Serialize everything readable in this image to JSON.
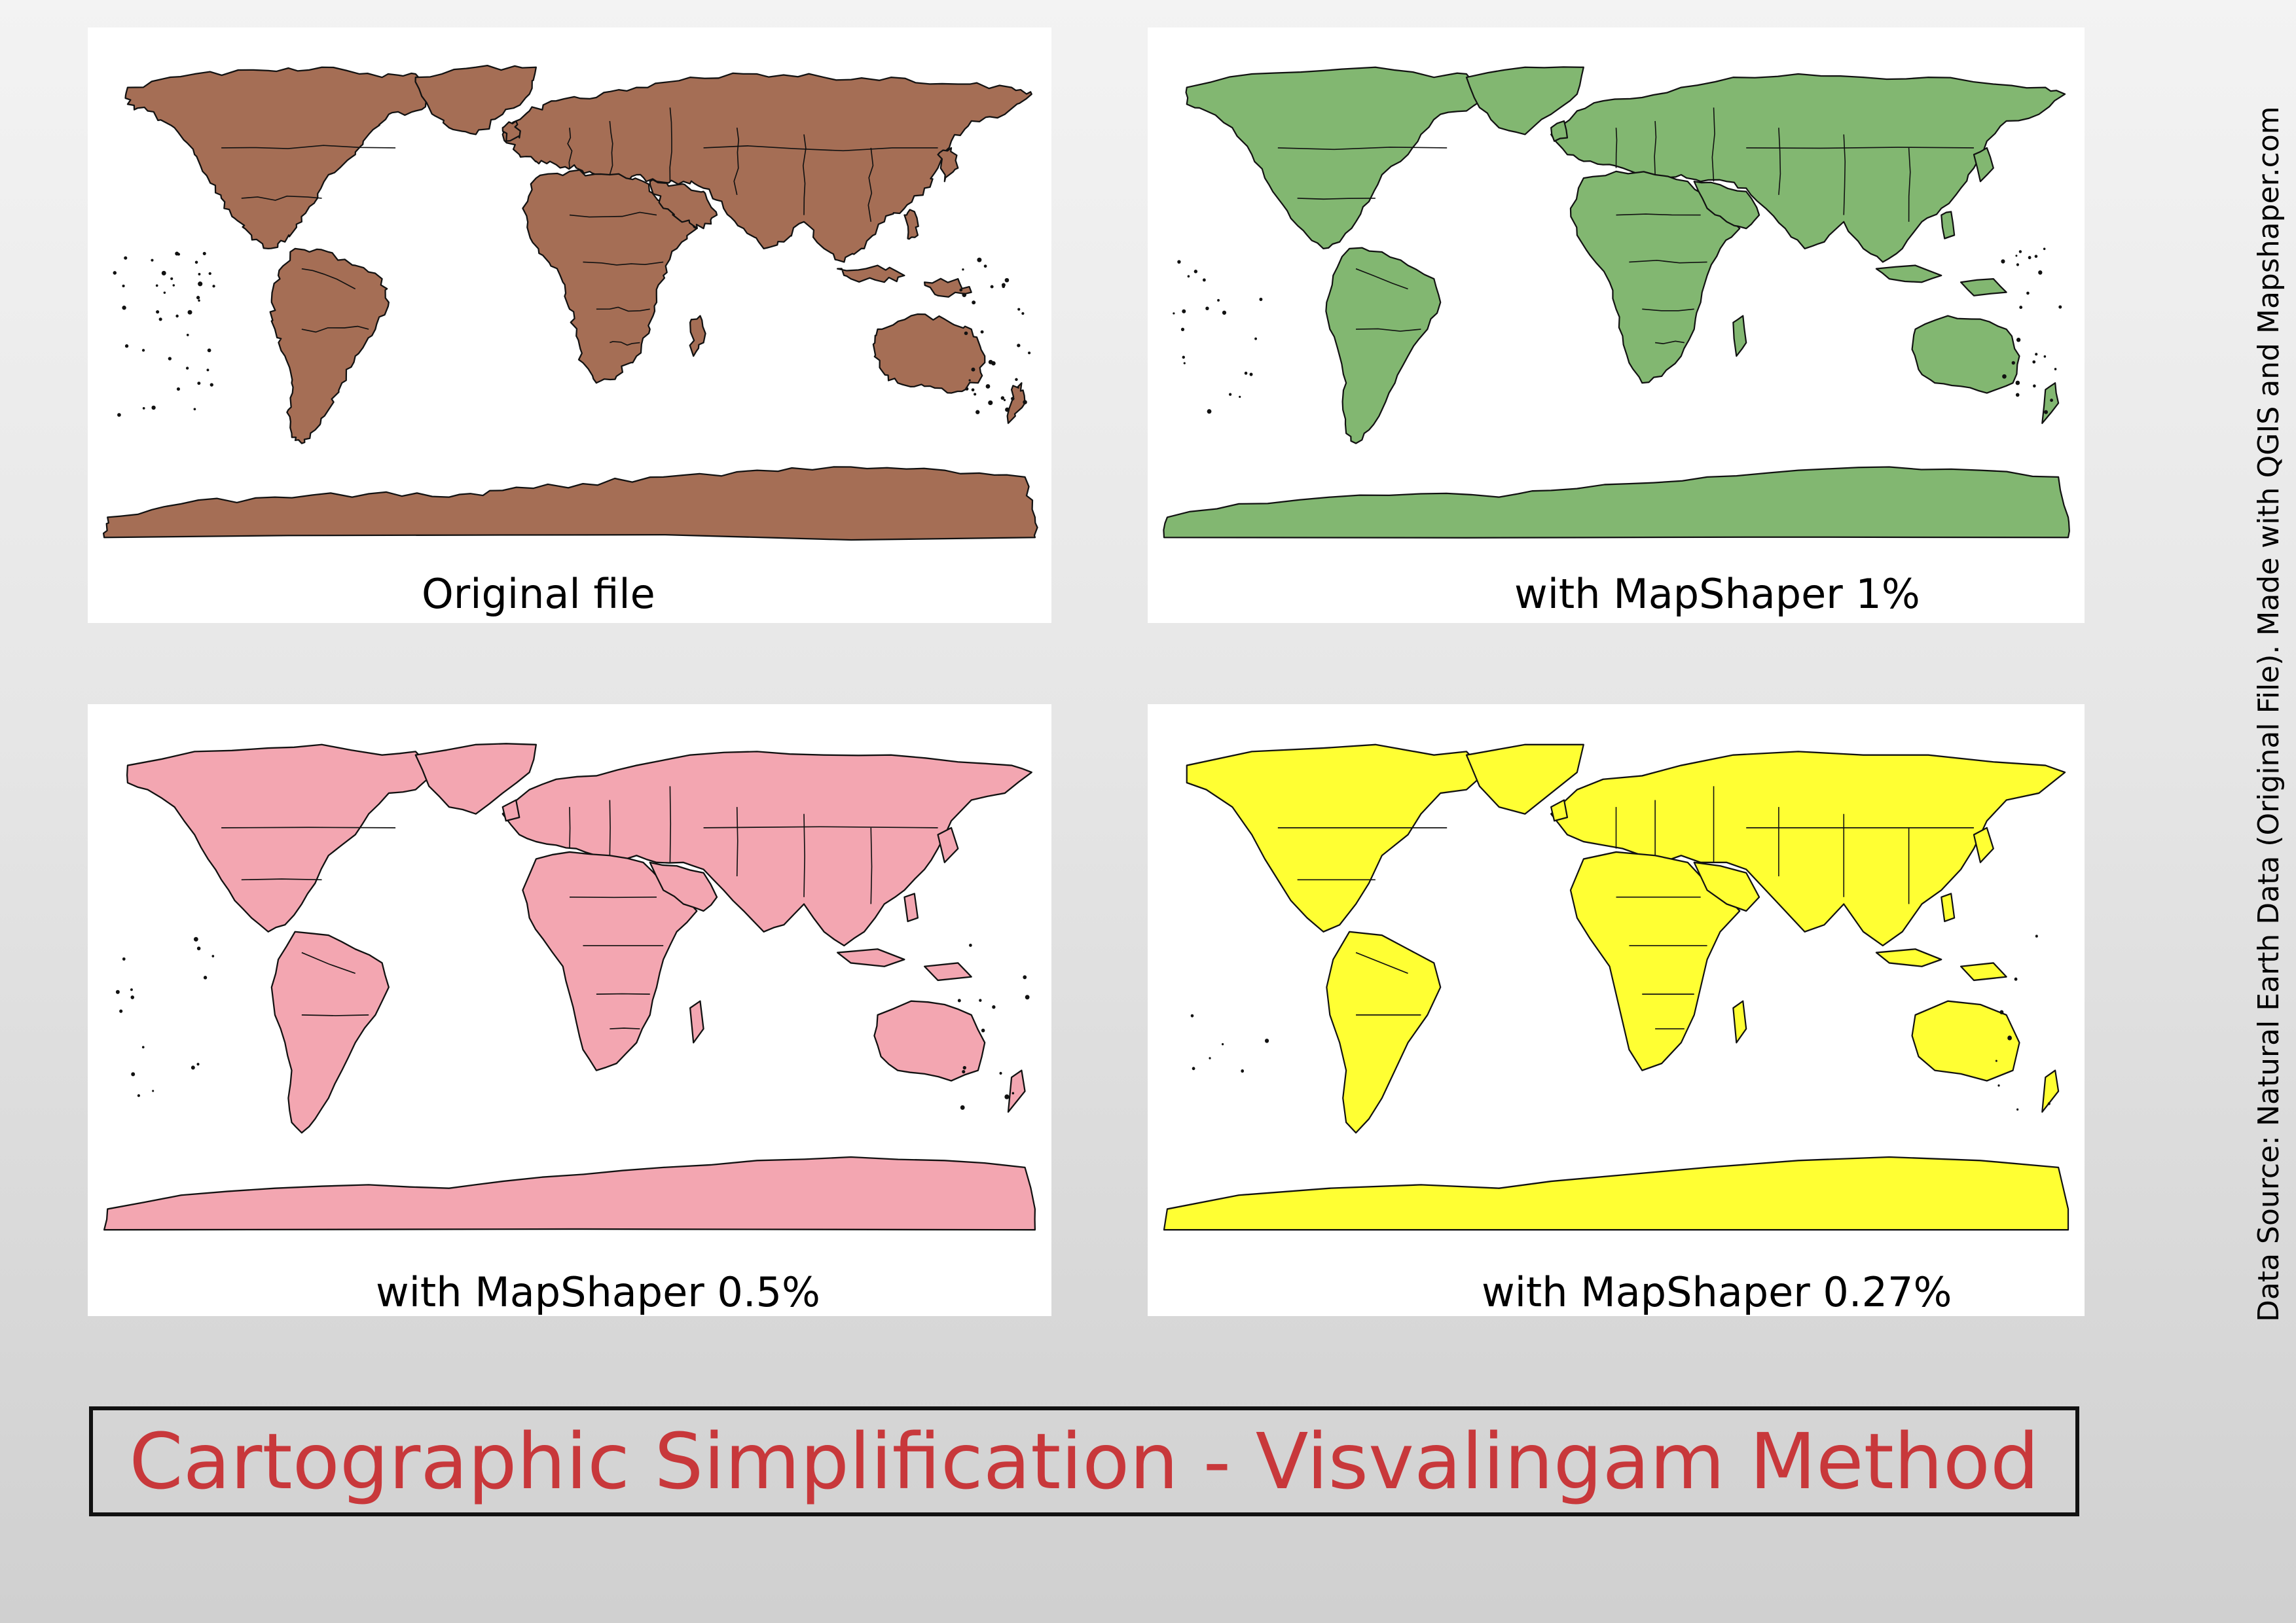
{
  "panels": [
    {
      "id": "original",
      "caption": "Original file",
      "fill": "#a56e55",
      "detail": "high"
    },
    {
      "id": "mapshaper-1",
      "caption": "with MapShaper 1%",
      "fill": "#82b771",
      "detail": "medium"
    },
    {
      "id": "mapshaper-0-5",
      "caption": "with MapShaper 0.5%",
      "fill": "#f3a6b1",
      "detail": "low"
    },
    {
      "id": "mapshaper-0-27",
      "caption": "with MapShaper 0.27%",
      "fill": "#ffff33",
      "detail": "very-low"
    }
  ],
  "title": "Cartographic Simplification - Visvalingam Method",
  "title_color": "#c8383b",
  "credit": "Data Source: Natural Earth Data (Original File). Made with QGIS and Mapshaper.com",
  "outline_color": "#111111"
}
